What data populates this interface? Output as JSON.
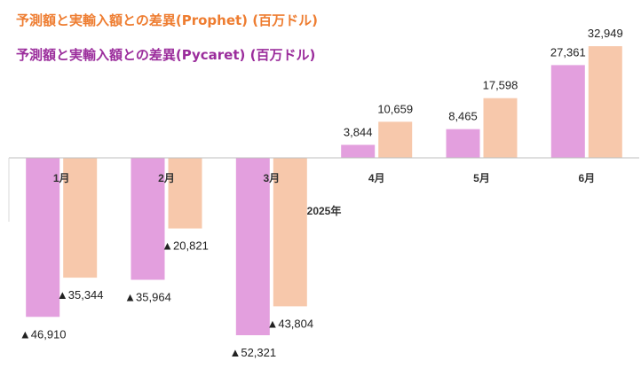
{
  "chart_data": {
    "type": "bar",
    "title": "",
    "xlabel": "2025年",
    "ylabel": "",
    "categories": [
      "1月",
      "2月",
      "3月",
      "4月",
      "5月",
      "6月"
    ],
    "series": [
      {
        "name": "予測額と実輸入額との差異(Pycaret) (百万ドル)",
        "color": "#e39fde",
        "values": [
          -46910,
          -35964,
          -52321,
          3844,
          8465,
          27361
        ],
        "labels": [
          "▲46,910",
          "▲35,964",
          "▲52,321",
          "3,844",
          "8,465",
          "27,361"
        ]
      },
      {
        "name": "予測額と実輸入額との差異(Prophet) (百万ドル)",
        "color": "#f7c8ab",
        "values": [
          -35344,
          -20821,
          -43804,
          10659,
          17598,
          32949
        ],
        "labels": [
          "▲35,344",
          "▲20,821",
          "▲43,804",
          "10,659",
          "17,598",
          "32,949"
        ]
      }
    ],
    "legend_order": [
      1,
      0
    ],
    "legend_colors": [
      "#ee7d31",
      "#9b2d9c"
    ],
    "ylim": [
      -58000,
      35000
    ],
    "grid": false,
    "legend_position": "top-left"
  }
}
